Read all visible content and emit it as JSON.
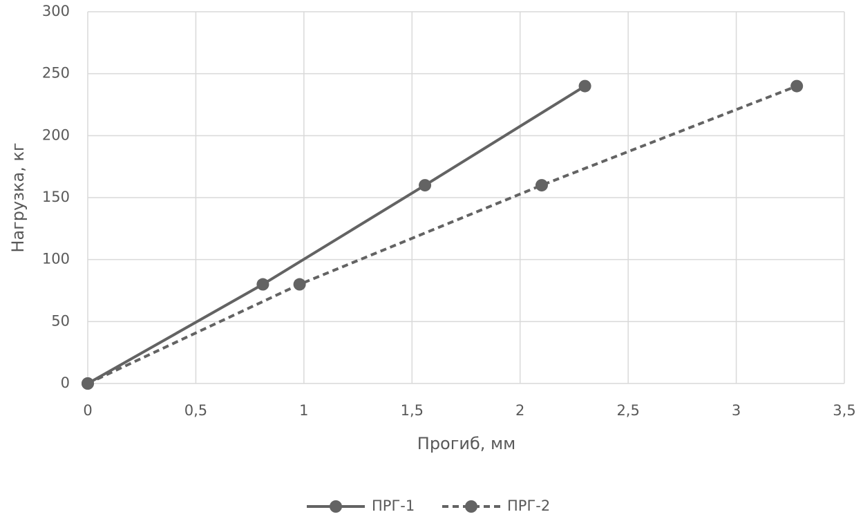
{
  "chart_data": {
    "type": "line",
    "xlabel": "Прогиб, мм",
    "ylabel": "Нагрузка, кг",
    "xlim": [
      0,
      3.5
    ],
    "ylim": [
      0,
      300
    ],
    "xticks": [
      0,
      {
        "value": 0.5,
        "label": "0,5"
      },
      1,
      {
        "value": 1.5,
        "label": "1,5"
      },
      2,
      {
        "value": 2.5,
        "label": "2,5"
      },
      3,
      {
        "value": 3.5,
        "label": "3,5"
      }
    ],
    "yticks": [
      0,
      50,
      100,
      150,
      200,
      250,
      300
    ],
    "grid": true,
    "legend": "bottom",
    "series": [
      {
        "name": "ПРГ-1",
        "color": "#636363",
        "line_style": "solid",
        "x": [
          0,
          0.81,
          1.56,
          2.3
        ],
        "values": [
          0,
          80,
          160,
          240
        ]
      },
      {
        "name": "ПРГ-2",
        "color": "#636363",
        "line_style": "dashed",
        "x": [
          0,
          0.98,
          2.1,
          3.28
        ],
        "values": [
          0,
          80,
          160,
          240
        ]
      }
    ]
  }
}
